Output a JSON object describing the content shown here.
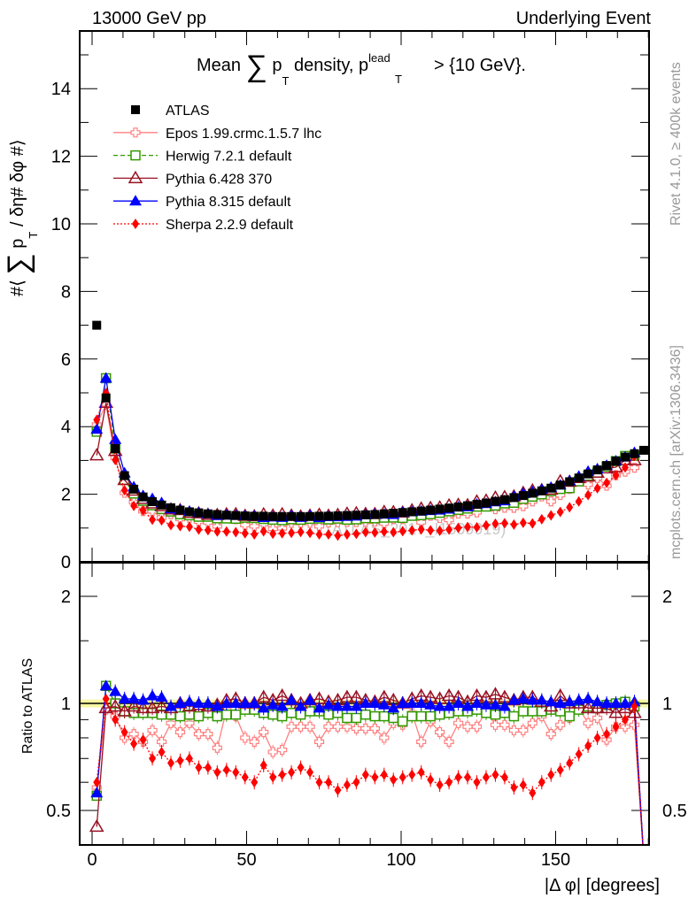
{
  "chart_data": {
    "type": "scatter",
    "header_left": "13000 GeV pp",
    "header_right": "Underlying Event",
    "title_parts": [
      "Mean",
      "∑",
      "p",
      "T",
      "density, p",
      "lead",
      "T",
      "> {10 GeV}."
    ],
    "ylabel_parts": [
      "#⟨",
      "∑",
      "p",
      "T",
      "/ δη# δφ #⟩"
    ],
    "ratio_ylabel": "Ratio to ATLAS",
    "xlabel": "|Δ φ| [degrees]",
    "side_text_top": "Rivet 4.1.0, ≥ 400k events",
    "side_text_bottom": "mcplots.cern.ch [arXiv:1306.3436]",
    "watermark": "(ATLAS_2017_I1509919)",
    "xlim": [
      -4,
      180
    ],
    "ylim": [
      0,
      15.7
    ],
    "ratio_ylim": [
      0.4,
      2.5
    ],
    "ratio_scale": "log",
    "x_ticks": [
      "0",
      "50",
      "100",
      "150"
    ],
    "y_ticks": [
      "0",
      "2",
      "4",
      "6",
      "8",
      "10",
      "12",
      "14"
    ],
    "ratio_ticks": [
      "0.5",
      "1",
      "2"
    ],
    "legend_position": "top-left",
    "x": [
      1.5,
      4.5,
      7.5,
      10.5,
      13.5,
      16.5,
      19.5,
      22.5,
      25.5,
      28.5,
      31.5,
      34.5,
      37.5,
      40.5,
      43.5,
      46.5,
      49.5,
      52.5,
      55.5,
      58.5,
      61.5,
      64.5,
      67.5,
      70.5,
      73.5,
      76.5,
      79.5,
      82.5,
      85.5,
      88.5,
      91.5,
      94.5,
      97.5,
      100.5,
      103.5,
      106.5,
      109.5,
      112.5,
      115.5,
      118.5,
      121.5,
      124.5,
      127.5,
      130.5,
      133.5,
      136.5,
      139.5,
      142.5,
      145.5,
      148.5,
      151.5,
      154.5,
      157.5,
      160.5,
      163.5,
      166.5,
      169.5,
      172.5,
      175.5,
      178.5
    ],
    "reference": {
      "name": "ATLAS",
      "color": "#000000",
      "values": [
        7.0,
        4.85,
        3.35,
        2.55,
        2.15,
        1.92,
        1.78,
        1.68,
        1.6,
        1.53,
        1.48,
        1.45,
        1.42,
        1.4,
        1.38,
        1.37,
        1.36,
        1.35,
        1.35,
        1.34,
        1.34,
        1.34,
        1.34,
        1.34,
        1.35,
        1.35,
        1.36,
        1.37,
        1.38,
        1.39,
        1.4,
        1.42,
        1.44,
        1.46,
        1.48,
        1.5,
        1.53,
        1.56,
        1.59,
        1.62,
        1.66,
        1.7,
        1.74,
        1.79,
        1.84,
        1.9,
        1.96,
        2.03,
        2.1,
        2.18,
        2.27,
        2.37,
        2.48,
        2.6,
        2.72,
        2.85,
        2.98,
        3.1,
        3.2,
        3.3
      ]
    },
    "series": [
      {
        "name": "Epos 1.99.crmc.1.5.7 lhc",
        "color": "#ff8080",
        "marker": "open-cross",
        "line": "solid",
        "ratio": [
          0.58,
          0.96,
          0.92,
          0.8,
          0.82,
          0.78,
          0.84,
          0.78,
          0.88,
          0.83,
          0.88,
          0.82,
          0.82,
          0.75,
          0.96,
          0.92,
          0.8,
          0.78,
          0.83,
          0.73,
          0.74,
          0.86,
          0.86,
          0.86,
          0.78,
          0.86,
          0.86,
          0.86,
          0.85,
          0.85,
          0.85,
          0.8,
          0.88,
          0.87,
          0.94,
          0.78,
          0.89,
          0.83,
          0.78,
          0.88,
          0.86,
          0.86,
          0.95,
          0.87,
          0.87,
          0.84,
          0.84,
          0.88,
          0.92,
          0.82,
          0.87,
          0.91,
          0.97,
          0.88,
          0.91,
          0.79,
          0.86,
          0.86,
          0.87,
          0
        ]
      },
      {
        "name": "Herwig 7.2.1 default",
        "color": "#339900",
        "marker": "open-square",
        "line": "dashed",
        "ratio": [
          0.55,
          1.12,
          1.0,
          0.95,
          0.94,
          0.94,
          0.94,
          0.93,
          0.93,
          0.92,
          0.93,
          0.92,
          0.94,
          0.92,
          0.93,
          0.93,
          0.96,
          0.96,
          0.94,
          0.93,
          0.92,
          0.94,
          0.93,
          0.95,
          0.95,
          0.93,
          0.94,
          0.91,
          0.91,
          0.93,
          0.92,
          0.92,
          0.91,
          0.89,
          0.92,
          0.92,
          0.92,
          0.93,
          0.94,
          0.95,
          0.95,
          0.96,
          0.94,
          0.93,
          0.94,
          0.92,
          0.95,
          0.95,
          0.95,
          0.96,
          0.95,
          0.92,
          0.96,
          0.98,
          0.97,
          0.99,
          1.0,
          1.01,
          0.98,
          0
        ]
      },
      {
        "name": "Pythia 6.428 370",
        "color": "#991122",
        "marker": "open-triangle",
        "line": "solid",
        "ratio": [
          0.45,
          0.97,
          0.98,
          0.95,
          0.98,
          0.97,
          0.97,
          0.98,
          0.97,
          1.0,
          0.98,
          0.99,
          0.98,
          0.99,
          1.02,
          1.03,
          1.0,
          1.0,
          1.04,
          1.02,
          1.05,
          1.02,
          1.0,
          1.02,
          1.03,
          1.01,
          1.02,
          1.04,
          1.04,
          1.02,
          1.01,
          1.04,
          1.02,
          1.0,
          1.03,
          1.05,
          1.04,
          1.03,
          1.05,
          1.04,
          1.01,
          1.05,
          1.04,
          1.06,
          1.04,
          1.02,
          1.04,
          1.04,
          1.01,
          0.98,
          1.05,
          1.0,
          1.0,
          0.97,
          0.97,
          0.97,
          0.94,
          0.97,
          0.94,
          0
        ]
      },
      {
        "name": "Pythia 8.315 default",
        "color": "#0000ff",
        "marker": "filled-triangle",
        "line": "solid",
        "ratio": [
          0.56,
          1.12,
          1.08,
          1.03,
          1.03,
          1.02,
          1.05,
          1.04,
          0.98,
          1.0,
          1.01,
          1.0,
          1.0,
          0.98,
          1.0,
          1.0,
          1.0,
          1.0,
          0.97,
          0.99,
          0.98,
          1.02,
          0.98,
          1.02,
          0.97,
          0.99,
          0.98,
          0.98,
          0.98,
          1.0,
          1.0,
          0.99,
          0.97,
          1.0,
          1.0,
          1.0,
          0.99,
          0.98,
          0.98,
          1.0,
          0.98,
          1.0,
          0.99,
          0.99,
          0.98,
          1.02,
          1.03,
          1.02,
          1.02,
          1.01,
          1.0,
          1.01,
          1.02,
          1.03,
          1.01,
          1.0,
          1.0,
          1.0,
          1.01,
          0
        ]
      },
      {
        "name": "Sherpa 2.2.9 default",
        "color": "#ff0000",
        "marker": "filled-diamond",
        "line": "dotted",
        "ratio": [
          0.6,
          1.03,
          0.9,
          0.83,
          0.77,
          0.79,
          0.7,
          0.73,
          0.68,
          0.69,
          0.7,
          0.66,
          0.66,
          0.64,
          0.65,
          0.64,
          0.62,
          0.6,
          0.67,
          0.62,
          0.63,
          0.64,
          0.66,
          0.64,
          0.6,
          0.6,
          0.57,
          0.59,
          0.6,
          0.63,
          0.62,
          0.63,
          0.61,
          0.62,
          0.63,
          0.64,
          0.61,
          0.59,
          0.6,
          0.62,
          0.62,
          0.6,
          0.62,
          0.63,
          0.62,
          0.58,
          0.59,
          0.56,
          0.6,
          0.63,
          0.65,
          0.68,
          0.72,
          0.76,
          0.8,
          0.82,
          0.86,
          0.9,
          0.98,
          0
        ]
      }
    ]
  }
}
